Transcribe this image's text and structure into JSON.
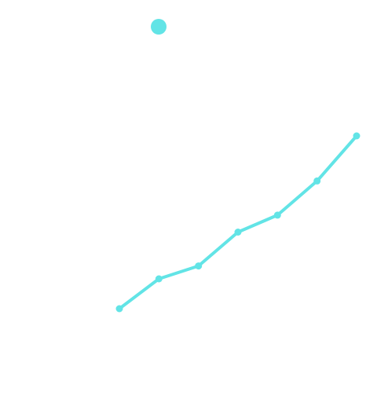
{
  "colors": {
    "background": "#ffffff",
    "series": "#62e4e6"
  },
  "chart_data": {
    "type": "line",
    "title": "",
    "xlabel": "",
    "ylabel": "",
    "x": [
      1,
      2,
      3,
      4,
      5,
      6,
      7
    ],
    "series": [
      {
        "values": [
          0.0,
          0.88,
          1.26,
          2.26,
          2.76,
          3.77,
          5.1
        ]
      }
    ],
    "xlim": [
      1,
      7
    ],
    "ylim": [
      0,
      5.1
    ],
    "grid": false,
    "legend": "none",
    "markers": true,
    "legend_marker": "circle"
  }
}
